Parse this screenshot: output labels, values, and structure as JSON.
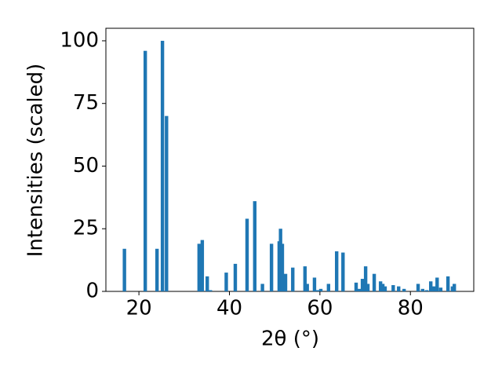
{
  "chart_data": {
    "type": "bar",
    "xlabel": "2θ (°)",
    "ylabel": "Intensities (scaled)",
    "color": "#1f77b4",
    "x": [
      16.8,
      21.4,
      24.0,
      25.2,
      26.1,
      33.3,
      34.0,
      35.1,
      35.8,
      39.3,
      41.3,
      43.9,
      45.6,
      47.3,
      49.3,
      51.0,
      51.3,
      51.7,
      52.4,
      54.0,
      56.7,
      57.2,
      58.8,
      59.5,
      60.2,
      61.9,
      63.7,
      65.1,
      68.0,
      68.7,
      69.4,
      70.1,
      70.6,
      72.0,
      73.4,
      73.9,
      74.4,
      76.2,
      77.4,
      78.6,
      81.7,
      82.7,
      83.6,
      84.5,
      85.2,
      85.9,
      86.7,
      88.3,
      89.3,
      89.7
    ],
    "values": [
      17,
      96,
      17,
      100,
      70,
      19,
      20.5,
      6,
      0.5,
      7.5,
      11,
      29,
      36,
      3,
      19,
      20,
      25,
      19,
      7,
      9.5,
      10,
      3,
      5.5,
      0.5,
      1,
      3,
      16,
      15.5,
      3.5,
      1,
      5,
      10,
      3,
      7,
      4,
      3,
      2,
      2.5,
      2,
      1,
      3,
      1,
      0.5,
      4,
      2,
      5.5,
      1.5,
      6,
      2,
      3
    ],
    "xlim": [
      12.7,
      94.0
    ],
    "ylim": [
      0,
      105
    ],
    "xticks": [
      20,
      40,
      60,
      80
    ],
    "yticks": [
      0,
      25,
      50,
      75,
      100
    ]
  }
}
